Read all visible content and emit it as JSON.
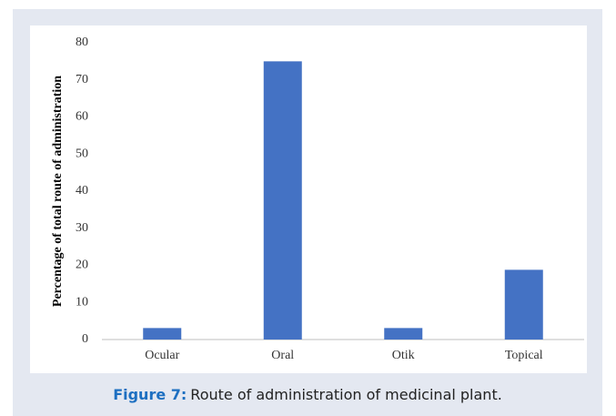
{
  "chart_data": {
    "type": "bar",
    "ylabel": "Percentage of total route of administration",
    "categories": [
      "Ocular",
      "Oral",
      "Otik",
      "Topical"
    ],
    "values": [
      3.1,
      75,
      3.1,
      18.8
    ],
    "color": "#4472c4",
    "ylim": [
      0,
      80
    ],
    "yticks": [
      0,
      10,
      20,
      30,
      40,
      50,
      60,
      70,
      80
    ],
    "grid": false,
    "caption_label": "Figure 7:",
    "caption_text": "Route of administration of medicinal plant."
  }
}
